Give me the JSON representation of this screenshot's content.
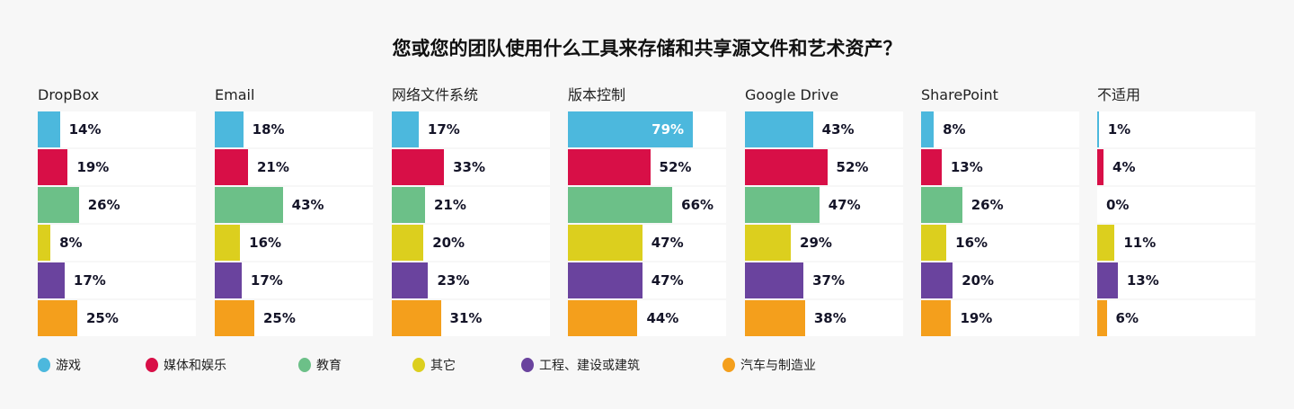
{
  "chart_data": {
    "type": "bar",
    "orientation": "horizontal",
    "title": "您或您的团队使用什么工具来存储和共享源文件和艺术资产？",
    "xlim": [
      0,
      100
    ],
    "unit": "%",
    "legend_position": "bottom",
    "series": [
      {
        "name": "游戏",
        "color": "#4cb8dd"
      },
      {
        "name": "媒体和娱乐",
        "color": "#d80f47"
      },
      {
        "name": "教育",
        "color": "#6cc088"
      },
      {
        "name": "其它",
        "color": "#dccf1e"
      },
      {
        "name": "工程、建设或建筑",
        "color": "#6a439e"
      },
      {
        "name": "汽车与制造业",
        "color": "#f49f1c"
      }
    ],
    "panels": [
      {
        "title": "DropBox",
        "values": [
          14,
          19,
          26,
          8,
          17,
          25
        ]
      },
      {
        "title": "Email",
        "values": [
          18,
          21,
          43,
          16,
          17,
          25
        ]
      },
      {
        "title": "网络文件系统",
        "values": [
          17,
          33,
          21,
          20,
          23,
          31
        ]
      },
      {
        "title": "版本控制",
        "values": [
          79,
          52,
          66,
          47,
          47,
          44
        ]
      },
      {
        "title": "Google Drive",
        "values": [
          43,
          52,
          47,
          29,
          37,
          38
        ]
      },
      {
        "title": "SharePoint",
        "values": [
          8,
          13,
          26,
          16,
          20,
          19
        ]
      },
      {
        "title": "不适用",
        "values": [
          1,
          4,
          0,
          11,
          13,
          6
        ]
      }
    ]
  }
}
